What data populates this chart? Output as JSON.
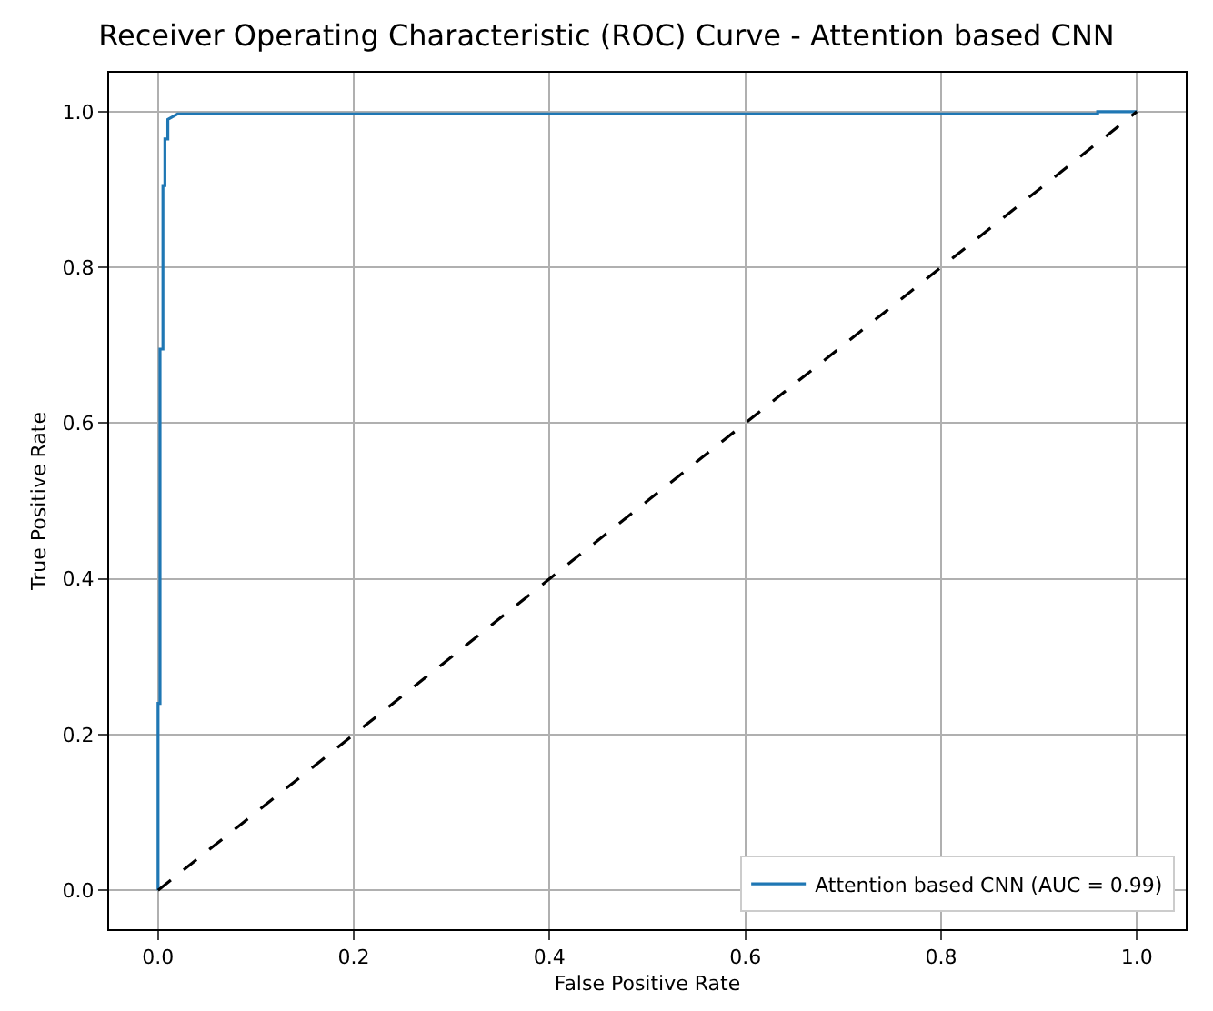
{
  "chart_data": {
    "type": "line",
    "title": "Receiver Operating Characteristic (ROC) Curve - Attention based CNN",
    "xlabel": "False Positive Rate",
    "ylabel": "True Positive Rate",
    "xlim": [
      -0.05,
      1.05
    ],
    "ylim": [
      -0.05,
      1.05
    ],
    "xticks": [
      {
        "value": 0,
        "label": "0.0"
      },
      0.2,
      0.4,
      0.6,
      0.8,
      {
        "value": 1,
        "label": "1.0"
      }
    ],
    "yticks": [
      {
        "value": 0,
        "label": "0.0"
      },
      0.2,
      0.4,
      0.6,
      0.8,
      {
        "value": 1,
        "label": "1.0"
      }
    ],
    "grid": true,
    "legend": "bottom right",
    "series": [
      {
        "name": "Attention based CNN (AUC = 0.99)",
        "color": "#1f77b4",
        "line_style": "solid",
        "x": [
          0,
          0,
          0.002,
          0.002,
          0.005,
          0.005,
          0.007,
          0.007,
          0.01,
          0.01,
          0.02,
          0.96,
          0.96,
          1.0
        ],
        "values": [
          0,
          0.24,
          0.24,
          0.695,
          0.695,
          0.905,
          0.905,
          0.965,
          0.965,
          0.99,
          0.997,
          0.997,
          1.0,
          1.0
        ]
      },
      {
        "color": "#000000",
        "line_style": "dashed",
        "x": [
          0,
          1
        ],
        "values": [
          0,
          1
        ]
      }
    ]
  }
}
